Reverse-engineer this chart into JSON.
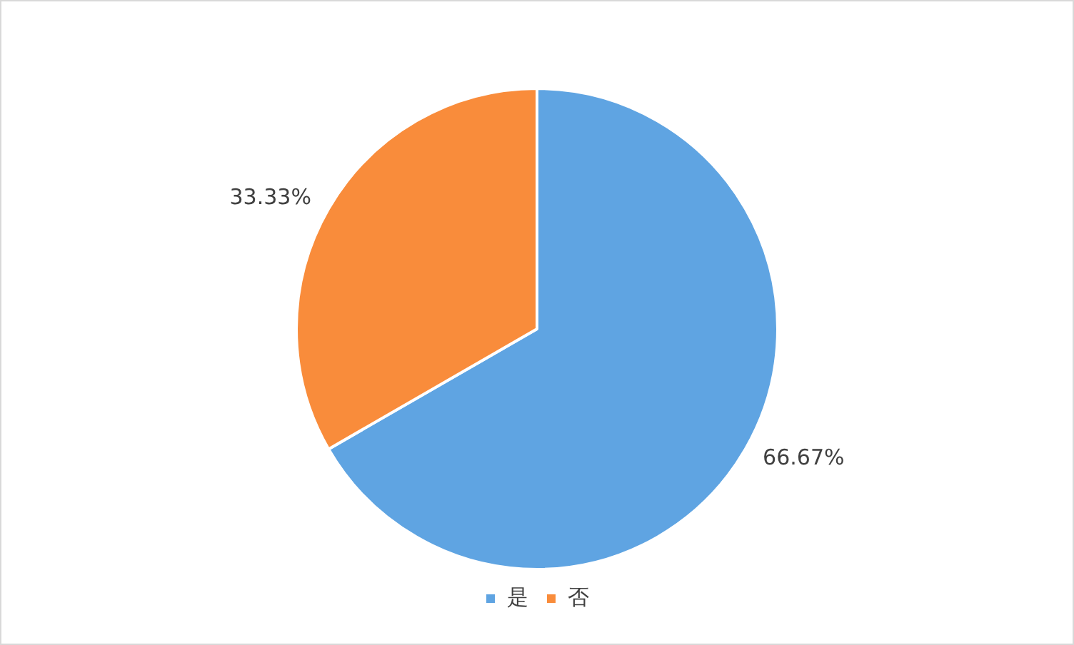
{
  "chart_data": {
    "type": "pie",
    "categories": [
      "是",
      "否"
    ],
    "values": [
      66.67,
      33.33
    ],
    "value_labels": [
      "66.67%",
      "33.33%"
    ],
    "colors": [
      "#5fa4e2",
      "#f98c3b"
    ],
    "legend": "bottom"
  }
}
